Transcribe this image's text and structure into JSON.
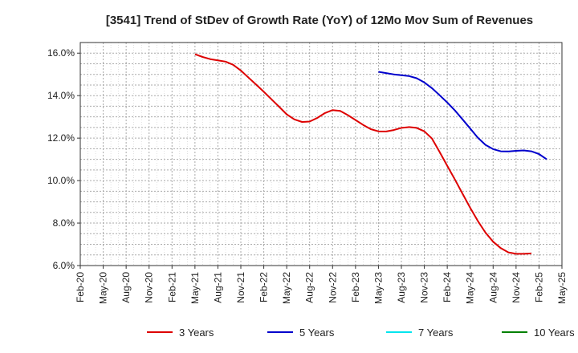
{
  "chart_data": {
    "type": "line",
    "title": "[3541]  Trend of StDev of Growth Rate (YoY) of 12Mo Mov Sum of Revenues",
    "xlabel": "",
    "ylabel": "",
    "ylim": [
      6.0,
      16.5
    ],
    "y_ticks": [
      6.0,
      8.0,
      10.0,
      12.0,
      14.0,
      16.0
    ],
    "y_tick_labels": [
      "6.0%",
      "8.0%",
      "10.0%",
      "12.0%",
      "14.0%",
      "16.0%"
    ],
    "x_tick_labels": [
      "Feb-20",
      "May-20",
      "Aug-20",
      "Nov-20",
      "Feb-21",
      "May-21",
      "Aug-21",
      "Nov-21",
      "Feb-22",
      "May-22",
      "Aug-22",
      "Nov-22",
      "Feb-23",
      "May-23",
      "Aug-23",
      "Nov-23",
      "Feb-24",
      "May-24",
      "Aug-24",
      "Nov-24",
      "Feb-25",
      "May-25"
    ],
    "x_range_months": [
      0,
      63
    ],
    "grid": true,
    "legend_position": "bottom",
    "series": [
      {
        "name": "3 Years",
        "color": "#dd0000",
        "start_month": 15,
        "values": [
          15.95,
          15.82,
          15.72,
          15.66,
          15.6,
          15.45,
          15.18,
          14.85,
          14.52,
          14.18,
          13.83,
          13.48,
          13.12,
          12.88,
          12.76,
          12.78,
          12.95,
          13.18,
          13.32,
          13.28,
          13.08,
          12.85,
          12.62,
          12.42,
          12.32,
          12.31,
          12.38,
          12.48,
          12.52,
          12.48,
          12.32,
          11.98,
          11.35,
          10.7,
          10.05,
          9.38,
          8.72,
          8.1,
          7.55,
          7.12,
          6.82,
          6.62,
          6.55,
          6.55,
          6.57
        ]
      },
      {
        "name": "5 Years",
        "color": "#0000cc",
        "start_month": 39,
        "values": [
          15.12,
          15.06,
          15.0,
          14.96,
          14.92,
          14.82,
          14.62,
          14.35,
          14.02,
          13.68,
          13.3,
          12.88,
          12.45,
          12.02,
          11.68,
          11.48,
          11.38,
          11.37,
          11.4,
          11.42,
          11.38,
          11.25,
          11.0
        ]
      },
      {
        "name": "7 Years",
        "color": "#00e5ee",
        "start_month": 0,
        "values": []
      },
      {
        "name": "10 Years",
        "color": "#008000",
        "start_month": 0,
        "values": []
      }
    ]
  }
}
